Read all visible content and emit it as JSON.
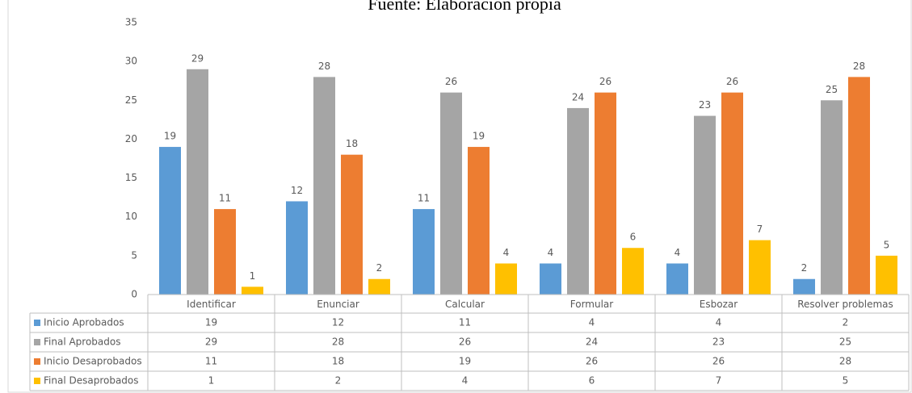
{
  "chart_data": {
    "type": "bar",
    "title": "Fuente: Elaboración propia",
    "categories": [
      "Identificar",
      "Enunciar",
      "Calcular",
      "Formular",
      "Esbozar",
      "Resolver problemas"
    ],
    "series": [
      {
        "name": "Inicio Aprobados",
        "color": "#5b9bd5",
        "values": [
          19,
          12,
          11,
          4,
          4,
          2
        ]
      },
      {
        "name": "Final Aprobados",
        "color": "#a5a5a5",
        "values": [
          29,
          28,
          26,
          24,
          23,
          25
        ]
      },
      {
        "name": "Inicio Desaprobados",
        "color": "#ed7d31",
        "values": [
          11,
          18,
          19,
          26,
          26,
          28
        ]
      },
      {
        "name": "Final Desaprobados",
        "color": "#ffc000",
        "values": [
          1,
          2,
          4,
          6,
          7,
          5
        ]
      }
    ],
    "ylim": [
      0,
      35
    ],
    "yticks": [
      0,
      5,
      10,
      15,
      20,
      25,
      30,
      35
    ],
    "grid": false
  }
}
